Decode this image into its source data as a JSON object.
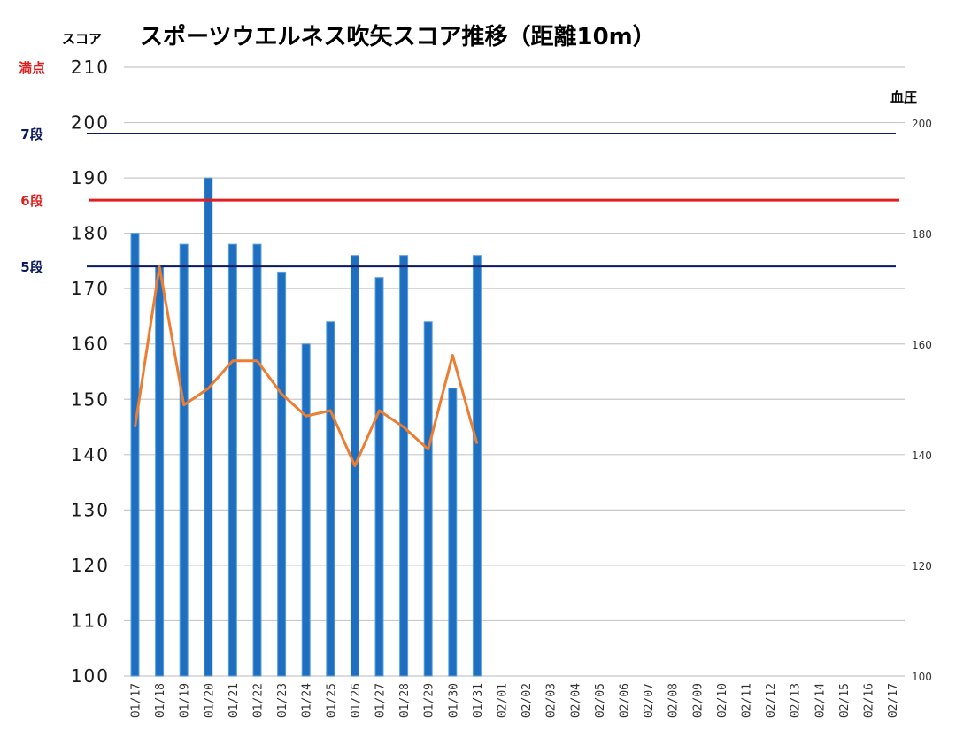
{
  "chart_data": {
    "type": "bar",
    "title": "スポーツウエルネス吹矢スコア推移（距離10m）",
    "ylabel": "スコア",
    "y2label": "血圧",
    "ylim": [
      100,
      210
    ],
    "y2lim": [
      100,
      210
    ],
    "yticks": [
      "100",
      "110",
      "120",
      "130",
      "140",
      "150",
      "160",
      "170",
      "180",
      "190",
      "200",
      "210"
    ],
    "y2ticks": [
      "100",
      "120",
      "140",
      "160",
      "180",
      "200"
    ],
    "grid": true,
    "categories": [
      "01/17",
      "01/18",
      "01/19",
      "01/20",
      "01/21",
      "01/22",
      "01/23",
      "01/24",
      "01/25",
      "01/26",
      "01/27",
      "01/28",
      "01/29",
      "01/30",
      "01/31",
      "02/01",
      "02/02",
      "02/03",
      "02/04",
      "02/05",
      "02/06",
      "02/07",
      "02/08",
      "02/09",
      "02/10",
      "02/11",
      "02/12",
      "02/13",
      "02/14",
      "02/15",
      "02/16",
      "02/17"
    ],
    "series": [
      {
        "type": "bar",
        "color": "#1f6fc0",
        "values": [
          180,
          174,
          178,
          190,
          178,
          178,
          173,
          160,
          164,
          176,
          172,
          176,
          164,
          152,
          176,
          null,
          null,
          null,
          null,
          null,
          null,
          null,
          null,
          null,
          null,
          null,
          null,
          null,
          null,
          null,
          null,
          null
        ]
      },
      {
        "type": "line",
        "axis": "right",
        "color": "#ed7d31",
        "values": [
          145,
          174,
          149,
          152,
          157,
          157,
          151,
          147,
          148,
          138,
          148,
          145,
          141,
          158,
          142,
          null,
          null,
          null,
          null,
          null,
          null,
          null,
          null,
          null,
          null,
          null,
          null,
          null,
          null,
          null,
          null,
          null
        ]
      }
    ],
    "reference_lines": [
      {
        "label": "満点",
        "value": 210,
        "color": "#e02020",
        "draw_line": false
      },
      {
        "label": "7段",
        "value": 198,
        "color": "#0a1a5c",
        "draw_line": true
      },
      {
        "label": "6段",
        "value": 186,
        "color": "#e02020",
        "draw_line": true
      },
      {
        "label": "5段",
        "value": 174,
        "color": "#0a1a5c",
        "draw_line": true
      }
    ]
  }
}
